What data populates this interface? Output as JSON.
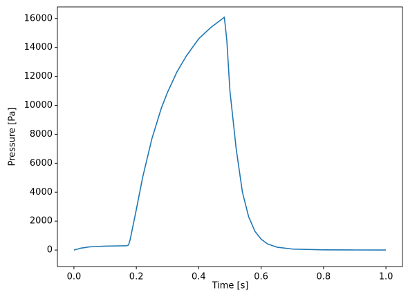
{
  "chart_data": {
    "type": "line",
    "x_label": "Time [s]",
    "y_label": "Pressure [Pa]",
    "x": [
      0,
      0.02,
      0.05,
      0.1,
      0.15,
      0.17,
      0.175,
      0.18,
      0.2,
      0.22,
      0.25,
      0.28,
      0.3,
      0.33,
      0.36,
      0.4,
      0.44,
      0.48,
      0.482,
      0.49,
      0.5,
      0.52,
      0.54,
      0.56,
      0.58,
      0.6,
      0.62,
      0.65,
      0.7,
      0.8,
      0.9,
      1.0
    ],
    "series": [
      {
        "color": "#1f77b4",
        "values": [
          0,
          120,
          220,
          270,
          290,
          300,
          350,
          700,
          2800,
          5000,
          7700,
          9800,
          10900,
          12300,
          13400,
          14600,
          15400,
          16050,
          16100,
          14500,
          11000,
          7000,
          4000,
          2300,
          1300,
          750,
          430,
          200,
          70,
          15,
          5,
          2
        ]
      }
    ],
    "xlim": [
      -0.053,
      1.053
    ],
    "ylim": [
      -1140,
      16800
    ],
    "xticks": [
      {
        "value": 0,
        "label": "0.0"
      },
      0.2,
      0.4,
      0.6,
      0.8,
      {
        "value": 1,
        "label": "1.0"
      }
    ],
    "yticks": [
      0,
      2000,
      4000,
      6000,
      8000,
      10000,
      12000,
      14000,
      16000
    ],
    "grid": false
  }
}
